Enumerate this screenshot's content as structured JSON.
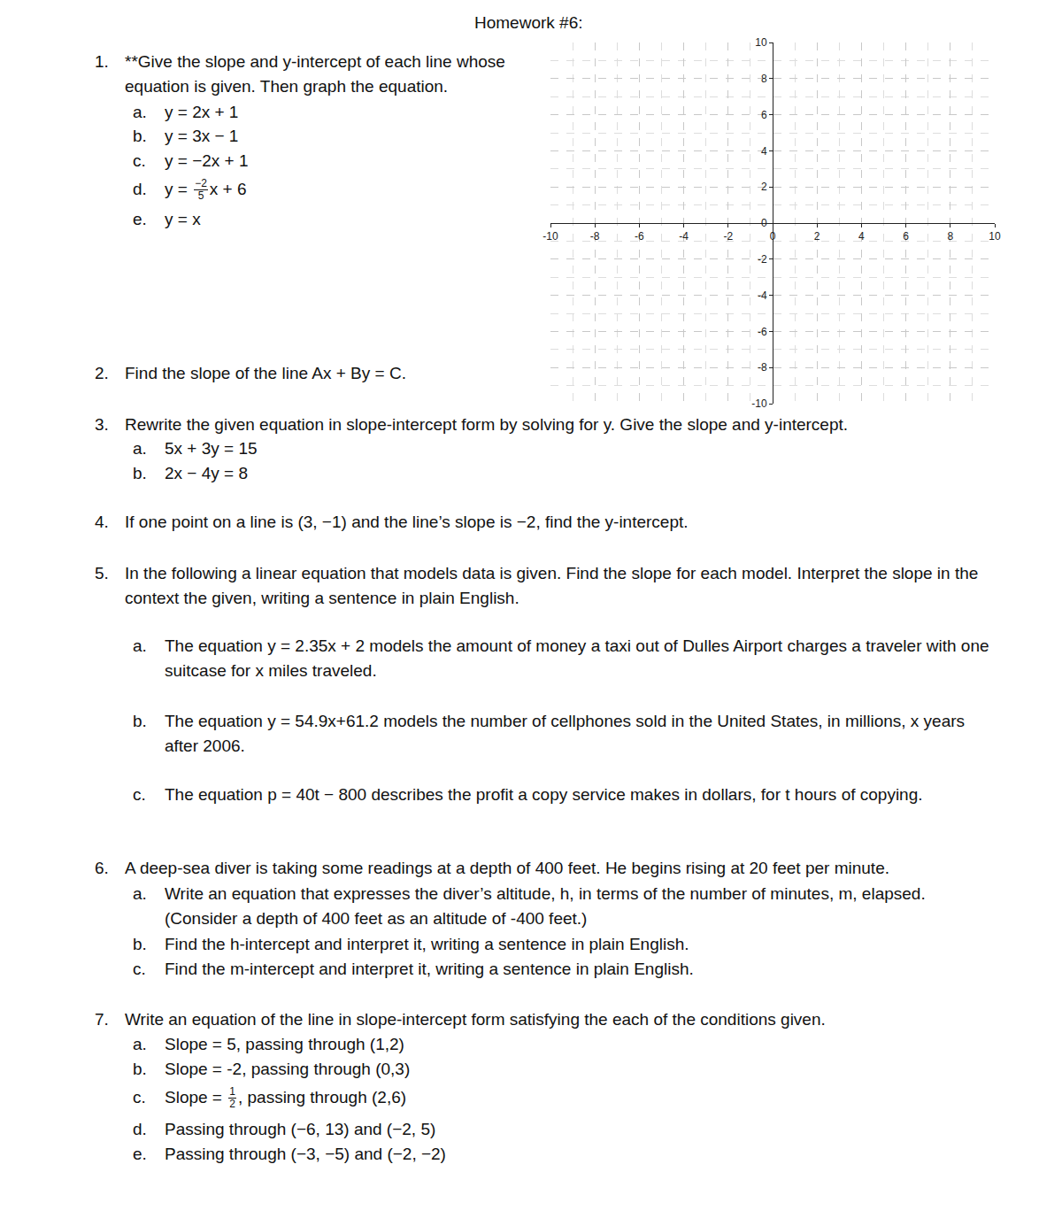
{
  "header": {
    "title": "Homework #6:"
  },
  "questions": [
    {
      "number": "1.",
      "text": "**Give the slope and y-intercept of each line whose equation is given. Then graph the equation.",
      "items": [
        {
          "label": "a.",
          "text": "y = 2x + 1"
        },
        {
          "label": "b.",
          "text": "y = 3x − 1"
        },
        {
          "label": "c.",
          "text": "y = −2x + 1"
        },
        {
          "label": "d.",
          "text": {
            "before": "y = ",
            "num": "−2",
            "den": "5",
            "after": "x + 6"
          }
        },
        {
          "label": "e.",
          "text": "y = x"
        }
      ]
    },
    {
      "number": "2.",
      "text": "Find the slope of the line Ax + By = C.",
      "items": []
    },
    {
      "number": "3.",
      "text": "Rewrite the given equation in slope-intercept form by solving for y. Give the slope and y-intercept.",
      "items": [
        {
          "label": "a.",
          "text": "5x + 3y = 15"
        },
        {
          "label": "b.",
          "text": "2x − 4y = 8"
        }
      ]
    },
    {
      "number": "4.",
      "text": "If one point on a line is (3, −1) and the line’s slope is −2, find the y-intercept.",
      "items": []
    },
    {
      "number": "5.",
      "text": "In the following a linear equation that models data is given.  Find the slope for each model.   Interpret the slope in the context the given, writing a sentence in plain English.",
      "items": [
        {
          "label": "a.",
          "text": "The equation y = 2.35x + 2 models the amount of money a taxi out of Dulles Airport charges a traveler with one suitcase for x miles traveled."
        },
        {
          "label": "b.",
          "text": "The equation y = 54.9x+61.2 models the number of cellphones sold in the United States, in millions, x years after 2006."
        },
        {
          "label": "c.",
          "text": "The equation p = 40t − 800 describes the profit a copy service makes in dollars, for t hours of copying."
        }
      ]
    },
    {
      "number": "6.",
      "text": "A deep-sea diver is taking some readings at a depth of 400 feet.  He begins rising at 20 feet per minute.",
      "items": [
        {
          "label": "a.",
          "text": "Write an equation that expresses the diver’s altitude, h, in terms of the number of minutes, m, elapsed. (Consider a depth of 400 feet as an altitude of -400 feet.)"
        },
        {
          "label": "b.",
          "text": "Find the h-intercept and interpret it, writing a sentence in plain English."
        },
        {
          "label": "c.",
          "text": "Find the m-intercept and interpret it, writing a sentence in plain English."
        }
      ]
    },
    {
      "number": "7.",
      "text": "Write an equation of the line in slope-intercept form satisfying the each of the conditions given.",
      "items": [
        {
          "label": "a.",
          "text": "Slope = 5, passing through (1,2)"
        },
        {
          "label": "b.",
          "text": "Slope = -2, passing through (0,3)"
        },
        {
          "label": "c.",
          "text": {
            "before": "Slope = ",
            "num": "1",
            "den": "2",
            "after": ", passing through (2,6)"
          }
        },
        {
          "label": "d.",
          "text": "Passing through (−6, 13) and (−2, 5)"
        },
        {
          "label": "e.",
          "text": "Passing through (−3, −5) and (−2, −2)"
        }
      ]
    }
  ],
  "chart_data": {
    "type": "grid",
    "xlim": [
      -10,
      10
    ],
    "ylim": [
      -10,
      10
    ],
    "xticks": [
      -10,
      -8,
      -6,
      -4,
      -2,
      0,
      2,
      4,
      6,
      8,
      10
    ],
    "yticks": [
      -10,
      -8,
      -6,
      -4,
      -2,
      0,
      2,
      4,
      6,
      8,
      10
    ],
    "grid": true
  }
}
